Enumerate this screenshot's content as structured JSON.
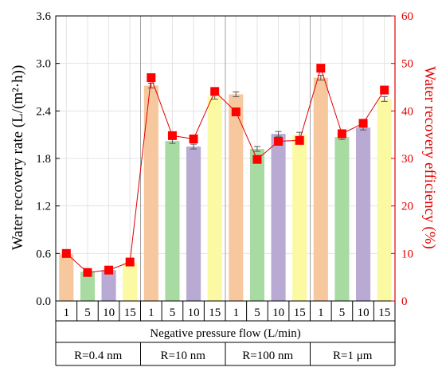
{
  "chart_data": {
    "type": "bar",
    "left_axis": {
      "label": "Water recovery rate (L/(m²·h))",
      "range": [
        0,
        3.6
      ],
      "ticks": [
        "0.0",
        "0.6",
        "1.2",
        "1.8",
        "2.4",
        "3.0",
        "3.6"
      ]
    },
    "right_axis": {
      "label": "Water recovery efficiency (%)",
      "range": [
        0,
        60
      ],
      "ticks": [
        "0",
        "10",
        "20",
        "30",
        "40",
        "50",
        "60"
      ],
      "color": "#e00000"
    },
    "x_axis_label": "Negative pressure flow (L/min)",
    "grid": true,
    "groups": [
      {
        "label": "R=0.4 nm",
        "categories": [
          "1",
          "5",
          "10",
          "15"
        ],
        "bar_values": [
          0.59,
          0.37,
          0.39,
          0.48
        ],
        "efficiency": [
          10.0,
          6.0,
          6.5,
          8.2
        ]
      },
      {
        "label": "R=10 nm",
        "categories": [
          "1",
          "5",
          "10",
          "15"
        ],
        "bar_values": [
          2.72,
          2.02,
          1.95,
          2.58
        ],
        "efficiency": [
          47.0,
          34.8,
          34.1,
          44.1
        ]
      },
      {
        "label": "R=100 nm",
        "categories": [
          "1",
          "5",
          "10",
          "15"
        ],
        "bar_values": [
          2.61,
          1.92,
          2.11,
          2.1
        ],
        "efficiency": [
          39.8,
          29.8,
          33.6,
          33.8
        ]
      },
      {
        "label": "R=1 μm",
        "categories": [
          "1",
          "5",
          "10",
          "15"
        ],
        "bar_values": [
          2.82,
          2.07,
          2.19,
          2.55
        ],
        "efficiency": [
          49.0,
          35.2,
          37.4,
          44.4
        ]
      }
    ],
    "bar_colors": [
      "#f7c79e",
      "#a8dba2",
      "#b9aad4",
      "#fbf9a2"
    ],
    "line_color": "#e00000",
    "marker_color": "#ff0000"
  }
}
